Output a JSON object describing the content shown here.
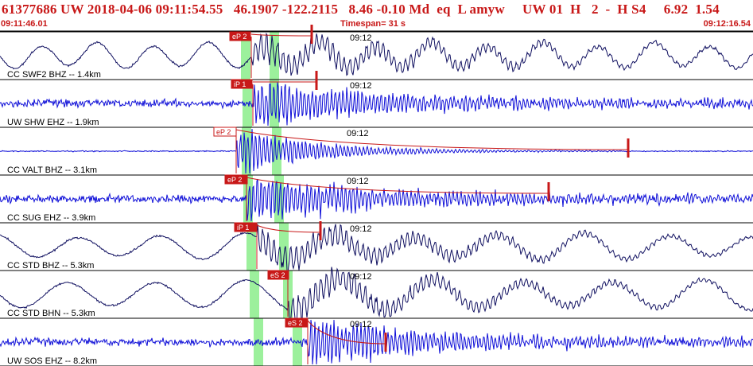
{
  "header": {
    "title": "61377686 UW 2018-04-06 09:11:54.55   46.1907 -122.2115   8.46 -0.10 Md  eq  L amyw     UW 01  H   2  -  H S4     6.92  1.54",
    "start_time": "09:11:46.01",
    "timespan": "Timespan=  31 s",
    "end_time": "09:12:16.54"
  },
  "colors": {
    "accent_red": "#c81818",
    "phase_window_green": "#9cf09c",
    "trace_dark": "#101060",
    "trace_blue": "#1010d8",
    "separator": "#000000"
  },
  "traces": [
    {
      "label": "CC SWF2 BHZ -- 1.4km",
      "time_mark": "09:12",
      "pick": "eP 2",
      "pick_filled": true,
      "color": "dark",
      "kind": "longperiod"
    },
    {
      "label": "UW SHW EHZ -- 1.9km",
      "time_mark": "09:12",
      "pick": "iP 1",
      "pick_filled": true,
      "color": "blue",
      "kind": "burst"
    },
    {
      "label": "CC VALT BHZ -- 3.1km",
      "time_mark": "09:12",
      "pick": "eP 2",
      "pick_filled": false,
      "color": "blue",
      "kind": "burst"
    },
    {
      "label": "CC SUG EHZ -- 3.9km",
      "time_mark": "09:12",
      "pick": "eP 2",
      "pick_filled": true,
      "color": "blue",
      "kind": "burst"
    },
    {
      "label": "CC STD BHZ -- 5.3km",
      "time_mark": "09:12",
      "pick": "iP 1",
      "pick_filled": true,
      "color": "dark",
      "kind": "longperiod"
    },
    {
      "label": "CC STD BHN -- 5.3km",
      "time_mark": "09:12",
      "pick": "eS 2",
      "pick_filled": true,
      "color": "dark",
      "kind": "longperiod"
    },
    {
      "label": "UW SOS EHZ -- 8.2km",
      "time_mark": "09:12",
      "pick": "eS 2",
      "pick_filled": true,
      "color": "blue",
      "kind": "burst"
    }
  ]
}
